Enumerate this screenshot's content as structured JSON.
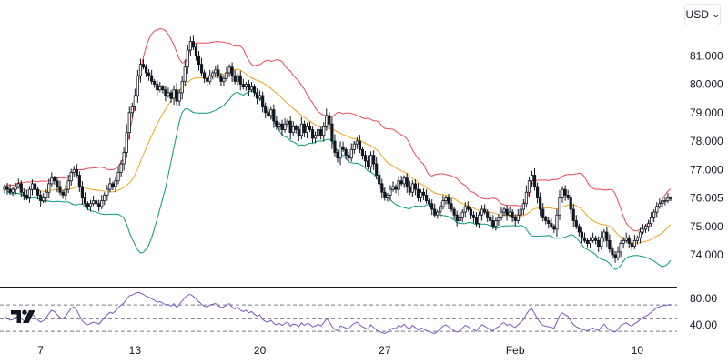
{
  "header": {
    "currency_label": "USD",
    "currency_icon": "chevron-down-icon"
  },
  "colors": {
    "candle": "#131722",
    "upper_band": "#ef4856",
    "middle_band": "#f7a21b",
    "lower_band": "#089981",
    "rsi_line": "#7e57c2",
    "grid": "#e0e3eb",
    "axis_text": "#131722"
  },
  "chart_data": [
    {
      "type": "candlestick",
      "title": "",
      "grid": false,
      "x_tick_labels": [
        "7",
        "13",
        "20",
        "27",
        "Feb",
        "10"
      ],
      "x_tick_index": [
        13,
        47,
        92,
        137,
        184,
        228
      ],
      "y_tick_labels": [
        "81.000",
        "80.000",
        "79.000",
        "78.000",
        "77.000",
        "75.000",
        "74.000"
      ],
      "y_ticks": [
        81.0,
        80.0,
        79.0,
        78.0,
        77.0,
        75.0,
        74.0
      ],
      "ylim": [
        73.2,
        82.0
      ],
      "last_price": "76.005",
      "last_price_value": 76.0,
      "close": [
        76.4,
        76.3,
        76.2,
        76.3,
        76.4,
        76.5,
        76.2,
        76.1,
        76.0,
        76.3,
        76.5,
        76.3,
        76.1,
        75.9,
        76.0,
        76.2,
        76.5,
        76.7,
        76.6,
        76.4,
        76.2,
        76.1,
        76.3,
        76.6,
        76.9,
        77.0,
        76.8,
        76.4,
        76.0,
        75.8,
        75.7,
        75.8,
        75.9,
        75.8,
        75.7,
        75.9,
        76.1,
        76.3,
        76.5,
        76.4,
        76.6,
        76.9,
        77.2,
        77.6,
        78.3,
        79.0,
        79.2,
        79.6,
        80.3,
        80.7,
        80.6,
        80.4,
        80.3,
        80.1,
        80.0,
        79.8,
        79.9,
        79.8,
        79.6,
        79.7,
        79.5,
        79.8,
        79.4,
        79.7,
        80.1,
        80.6,
        81.2,
        81.5,
        81.3,
        81.0,
        80.7,
        80.4,
        80.2,
        80.1,
        80.3,
        80.4,
        80.5,
        80.3,
        80.1,
        80.2,
        80.4,
        80.6,
        80.3,
        80.1,
        80.3,
        80.0,
        79.9,
        80.0,
        79.8,
        79.9,
        79.7,
        79.5,
        79.6,
        79.2,
        79.0,
        78.9,
        79.1,
        78.7,
        78.5,
        78.6,
        78.4,
        78.6,
        78.7,
        78.3,
        78.5,
        78.4,
        78.2,
        78.6,
        78.3,
        78.5,
        78.4,
        78.1,
        78.2,
        78.4,
        78.2,
        78.5,
        78.9,
        78.6,
        78.0,
        77.6,
        77.4,
        77.8,
        77.7,
        77.5,
        77.4,
        77.7,
        77.9,
        78.0,
        77.7,
        77.5,
        77.3,
        77.1,
        77.5,
        77.2,
        76.8,
        76.5,
        76.2,
        76.0,
        76.1,
        76.3,
        76.4,
        76.3,
        76.6,
        76.5,
        76.7,
        76.4,
        76.2,
        76.5,
        76.3,
        76.0,
        76.2,
        76.1,
        75.9,
        75.8,
        75.6,
        75.4,
        75.5,
        75.7,
        75.9,
        76.0,
        75.8,
        75.6,
        75.4,
        75.2,
        75.3,
        75.5,
        75.7,
        75.6,
        75.4,
        75.3,
        75.1,
        75.4,
        75.6,
        75.5,
        75.3,
        75.2,
        75.0,
        75.2,
        75.3,
        75.5,
        75.6,
        75.4,
        75.5,
        75.3,
        75.2,
        75.4,
        75.6,
        75.8,
        76.2,
        76.6,
        76.8,
        76.4,
        76.0,
        75.6,
        75.3,
        75.2,
        75.1,
        75.0,
        74.9,
        75.4,
        76.0,
        76.3,
        76.1,
        76.0,
        75.6,
        75.2,
        75.0,
        74.8,
        74.6,
        74.5,
        74.4,
        74.5,
        74.6,
        74.5,
        74.3,
        74.6,
        74.8,
        74.5,
        74.2,
        74.0,
        73.9,
        74.1,
        74.4,
        74.5,
        74.6,
        74.4,
        74.3,
        74.5,
        74.6,
        74.8,
        74.9,
        75.0,
        75.1,
        75.3,
        75.5,
        75.7,
        75.8,
        75.9,
        75.9,
        76.0,
        76.0
      ],
      "rsi_axis_labels": [
        "80.00",
        "40.00"
      ],
      "rsi_ticks": [
        80,
        40
      ],
      "rsi_ylim": [
        22,
        88
      ],
      "rsi_levels": [
        70,
        50,
        30
      ],
      "rsi": [
        52,
        50,
        47,
        48,
        51,
        53,
        49,
        46,
        44,
        49,
        56,
        52,
        47,
        44,
        46,
        51,
        57,
        62,
        60,
        55,
        51,
        49,
        53,
        59,
        65,
        67,
        62,
        54,
        46,
        42,
        40,
        42,
        44,
        43,
        41,
        46,
        51,
        55,
        59,
        57,
        61,
        66,
        70,
        73,
        79,
        84,
        85,
        87,
        89,
        88,
        86,
        83,
        82,
        79,
        77,
        74,
        75,
        73,
        70,
        71,
        68,
        72,
        66,
        71,
        76,
        81,
        85,
        86,
        83,
        79,
        75,
        71,
        68,
        67,
        70,
        71,
        72,
        69,
        66,
        67,
        70,
        72,
        67,
        64,
        67,
        62,
        60,
        62,
        58,
        60,
        56,
        53,
        55,
        48,
        45,
        44,
        47,
        42,
        40,
        42,
        39,
        42,
        44,
        38,
        41,
        40,
        37,
        43,
        39,
        42,
        41,
        37,
        38,
        41,
        38,
        43,
        49,
        45,
        37,
        33,
        31,
        38,
        37,
        35,
        34,
        39,
        42,
        44,
        40,
        37,
        35,
        33,
        40,
        36,
        32,
        30,
        28,
        27,
        29,
        33,
        35,
        34,
        39,
        37,
        41,
        36,
        34,
        39,
        36,
        32,
        35,
        34,
        31,
        30,
        28,
        27,
        30,
        34,
        38,
        40,
        37,
        34,
        31,
        29,
        31,
        35,
        39,
        37,
        34,
        33,
        30,
        36,
        40,
        38,
        35,
        33,
        31,
        35,
        37,
        41,
        43,
        39,
        41,
        38,
        36,
        40,
        44,
        48,
        56,
        62,
        64,
        57,
        49,
        43,
        39,
        38,
        37,
        36,
        35,
        44,
        54,
        58,
        55,
        53,
        46,
        40,
        37,
        35,
        33,
        32,
        31,
        33,
        35,
        33,
        31,
        37,
        41,
        36,
        32,
        30,
        29,
        33,
        39,
        41,
        43,
        40,
        38,
        42,
        44,
        48,
        51,
        53,
        55,
        59,
        62,
        66,
        67,
        69,
        69,
        70,
        71
      ]
    }
  ]
}
